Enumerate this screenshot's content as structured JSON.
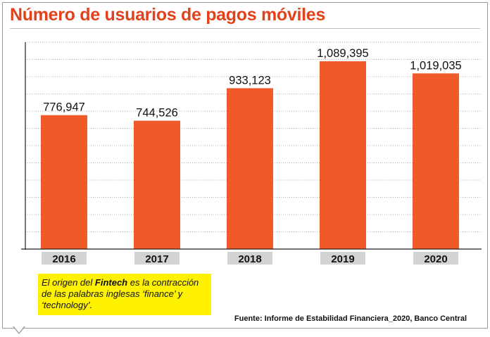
{
  "title": "Número de usuarios de pagos móviles",
  "colors": {
    "title": "#e2421b",
    "bar": "#f05a28",
    "category_box": "#d3d3d3",
    "note_background": "#fef200",
    "grid": "#999999"
  },
  "note": {
    "part1": "El origen del ",
    "highlight": "Fintech",
    "part2": " es la contracción de las palabras inglesas ‘finance’ y ‘technology’."
  },
  "source": "Fuente: Informe de Estabilidad Financiera_2020, Banco Central",
  "chart_data": {
    "type": "bar",
    "title": "Número de usuarios de pagos móviles",
    "xlabel": "",
    "ylabel": "",
    "categories": [
      "2016",
      "2017",
      "2018",
      "2019",
      "2020"
    ],
    "values": [
      776947,
      744526,
      933123,
      1089395,
      1019035
    ],
    "value_labels": [
      "776,947",
      "744,526",
      "933,123",
      "1,089,395",
      "1,019,035"
    ],
    "ylim": [
      0,
      1200000
    ],
    "grid": true,
    "grid_style": "dotted horizontal",
    "legend": "none"
  }
}
